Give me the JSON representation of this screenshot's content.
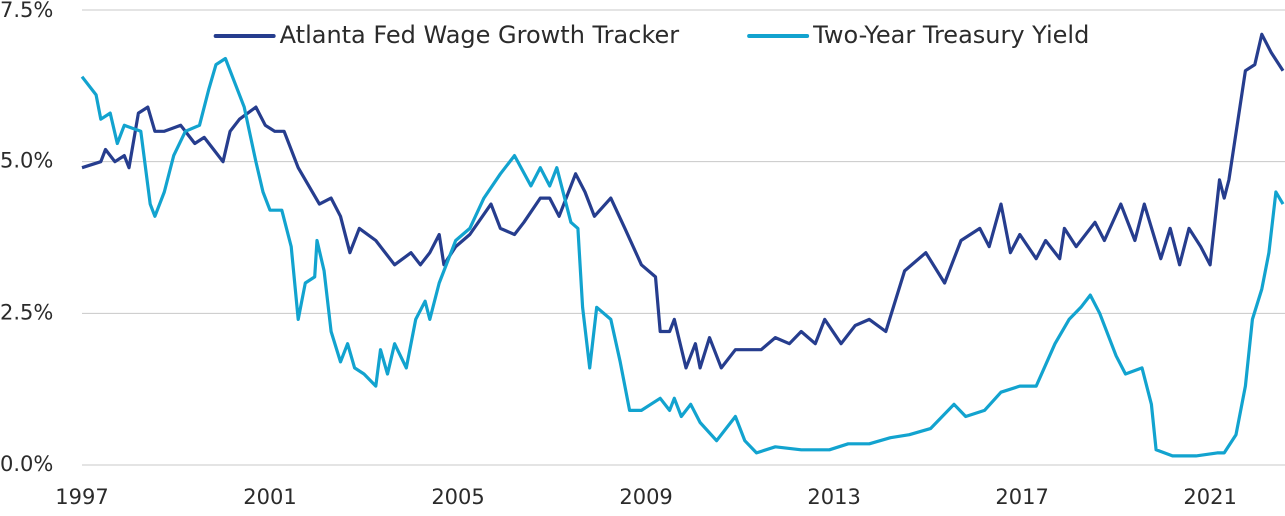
{
  "chart_data": {
    "type": "line",
    "xlim": [
      1997,
      2022.55
    ],
    "xticks": [
      1997,
      2001,
      2005,
      2009,
      2013,
      2017,
      2021
    ],
    "ylim": [
      0,
      7.5
    ],
    "yticks": [
      {
        "value": 0,
        "label": "0.0%"
      },
      {
        "value": 2.5,
        "label": "2.5%"
      },
      {
        "value": 5,
        "label": "5.0%"
      },
      {
        "value": 7.5,
        "label": "7.5%"
      }
    ],
    "grid": true,
    "legend": "upper center",
    "series": [
      {
        "name": "Atlanta Fed Wage Growth Tracker",
        "color": "#263d8e",
        "x": [
          1997.0,
          1997.4,
          1997.5,
          1997.7,
          1997.9,
          1998.0,
          1998.2,
          1998.4,
          1998.55,
          1998.75,
          1999.1,
          1999.4,
          1999.6,
          1999.8,
          2000.0,
          2000.15,
          2000.35,
          2000.7,
          2000.9,
          2001.1,
          2001.3,
          2001.6,
          2002.05,
          2002.3,
          2002.5,
          2002.7,
          2002.9,
          2003.25,
          2003.65,
          2004.0,
          2004.2,
          2004.4,
          2004.6,
          2004.7,
          2004.95,
          2005.25,
          2005.7,
          2005.9,
          2006.2,
          2006.4,
          2006.75,
          2006.95,
          2007.15,
          2007.5,
          2007.7,
          2007.9,
          2008.25,
          2008.55,
          2008.9,
          2009.2,
          2009.3,
          2009.5,
          2009.6,
          2009.85,
          2010.05,
          2010.15,
          2010.35,
          2010.6,
          2010.9,
          2011.45,
          2011.75,
          2012.05,
          2012.3,
          2012.6,
          2012.8,
          2013.15,
          2013.45,
          2013.75,
          2014.1,
          2014.5,
          2014.95,
          2015.35,
          2015.7,
          2016.1,
          2016.3,
          2016.55,
          2016.75,
          2016.95,
          2017.3,
          2017.5,
          2017.8,
          2017.9,
          2018.15,
          2018.55,
          2018.75,
          2019.1,
          2019.4,
          2019.6,
          2019.95,
          2020.15,
          2020.35,
          2020.55,
          2020.8,
          2021.0,
          2021.2,
          2021.3,
          2021.4,
          2021.75,
          2021.95,
          2022.1,
          2022.3,
          2022.55
        ],
        "values": [
          4.9,
          5.0,
          5.2,
          5.0,
          5.1,
          4.9,
          5.8,
          5.9,
          5.5,
          5.5,
          5.6,
          5.3,
          5.4,
          5.2,
          5.0,
          5.5,
          5.7,
          5.9,
          5.6,
          5.5,
          5.5,
          4.9,
          4.3,
          4.4,
          4.1,
          3.5,
          3.9,
          3.7,
          3.3,
          3.5,
          3.3,
          3.5,
          3.8,
          3.3,
          3.6,
          3.8,
          4.3,
          3.9,
          3.8,
          4.0,
          4.4,
          4.4,
          4.1,
          4.8,
          4.5,
          4.1,
          4.4,
          3.9,
          3.3,
          3.1,
          2.2,
          2.2,
          2.4,
          1.6,
          2.0,
          1.6,
          2.1,
          1.6,
          1.9,
          1.9,
          2.1,
          2.0,
          2.2,
          2.0,
          2.4,
          2.0,
          2.3,
          2.4,
          2.2,
          3.2,
          3.5,
          3.0,
          3.7,
          3.9,
          3.6,
          4.3,
          3.5,
          3.8,
          3.4,
          3.7,
          3.4,
          3.9,
          3.6,
          4.0,
          3.7,
          4.3,
          3.7,
          4.3,
          3.4,
          3.9,
          3.3,
          3.9,
          3.6,
          3.3,
          4.7,
          4.4,
          4.7,
          6.5,
          6.6,
          7.1,
          6.8,
          6.5
        ]
      },
      {
        "name": "Two-Year Treasury Yield",
        "color": "#12a3cf",
        "x": [
          1997.0,
          1997.3,
          1997.4,
          1997.6,
          1997.75,
          1997.9,
          1998.25,
          1998.45,
          1998.55,
          1998.75,
          1998.95,
          1999.2,
          1999.5,
          1999.7,
          1999.85,
          2000.05,
          2000.25,
          2000.45,
          2000.7,
          2000.85,
          2001.0,
          2001.25,
          2001.45,
          2001.6,
          2001.75,
          2001.95,
          2002.0,
          2002.15,
          2002.3,
          2002.5,
          2002.65,
          2002.8,
          2003.0,
          2003.25,
          2003.35,
          2003.5,
          2003.65,
          2003.9,
          2004.1,
          2004.3,
          2004.4,
          2004.6,
          2004.95,
          2005.25,
          2005.55,
          2005.9,
          2006.2,
          2006.55,
          2006.75,
          2006.95,
          2007.1,
          2007.4,
          2007.55,
          2007.65,
          2007.8,
          2007.95,
          2008.25,
          2008.45,
          2008.65,
          2008.9,
          2009.1,
          2009.3,
          2009.5,
          2009.6,
          2009.75,
          2009.95,
          2010.15,
          2010.5,
          2010.9,
          2011.1,
          2011.35,
          2011.75,
          2012.3,
          2012.9,
          2013.3,
          2013.75,
          2014.2,
          2014.6,
          2015.05,
          2015.55,
          2015.8,
          2016.2,
          2016.55,
          2016.95,
          2017.3,
          2017.7,
          2018.0,
          2018.25,
          2018.45,
          2018.65,
          2019.0,
          2019.2,
          2019.55,
          2019.75,
          2019.85,
          2020.2,
          2020.7,
          2021.15,
          2021.3,
          2021.55,
          2021.75,
          2021.9,
          2022.1,
          2022.25,
          2022.4,
          2022.55
        ],
        "values": [
          6.4,
          6.1,
          5.7,
          5.8,
          5.3,
          5.6,
          5.5,
          4.3,
          4.1,
          4.5,
          5.1,
          5.5,
          5.6,
          6.2,
          6.6,
          6.7,
          6.3,
          5.9,
          5.0,
          4.5,
          4.2,
          4.2,
          3.6,
          2.4,
          3.0,
          3.1,
          3.7,
          3.2,
          2.2,
          1.7,
          2.0,
          1.6,
          1.5,
          1.3,
          1.9,
          1.5,
          2.0,
          1.6,
          2.4,
          2.7,
          2.4,
          3.0,
          3.7,
          3.9,
          4.4,
          4.8,
          5.1,
          4.6,
          4.9,
          4.6,
          4.9,
          4.0,
          3.9,
          2.6,
          1.6,
          2.6,
          2.4,
          1.7,
          0.9,
          0.9,
          1.0,
          1.1,
          0.9,
          1.1,
          0.8,
          1.0,
          0.7,
          0.4,
          0.8,
          0.4,
          0.2,
          0.3,
          0.25,
          0.25,
          0.35,
          0.35,
          0.45,
          0.5,
          0.6,
          1.0,
          0.8,
          0.9,
          1.2,
          1.3,
          1.3,
          2.0,
          2.4,
          2.6,
          2.8,
          2.5,
          1.8,
          1.5,
          1.6,
          1.0,
          0.25,
          0.15,
          0.15,
          0.2,
          0.2,
          0.5,
          1.3,
          2.4,
          2.9,
          3.5,
          4.5,
          4.3
        ]
      }
    ]
  }
}
